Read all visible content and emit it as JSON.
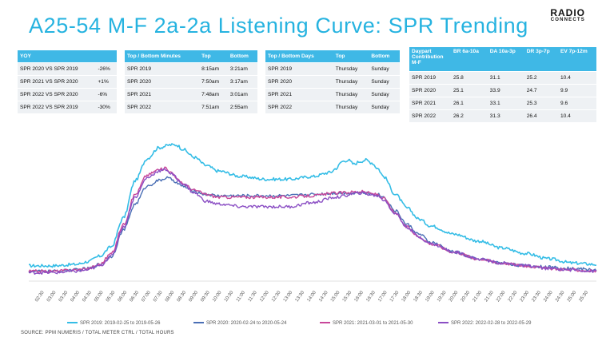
{
  "header": {
    "title": "A25-54 M-F 2a-2a Listening Curve: SPR Trending",
    "logo_line1": "RADIO",
    "logo_line2": "CONNECTS"
  },
  "tables": {
    "yoy": {
      "headers": [
        "YOY",
        ""
      ],
      "rows": [
        [
          "SPR 2020 VS SPR 2019",
          "-26%"
        ],
        [
          "SPR 2021 VS SPR 2020",
          "+1%"
        ],
        [
          "SPR 2022 VS SPR 2020",
          "-6%"
        ],
        [
          "SPR 2022 VS SPR 2019",
          "-30%"
        ]
      ]
    },
    "minutes": {
      "headers": [
        "Top / Bottom Minutes",
        "Top",
        "Bottom"
      ],
      "rows": [
        [
          "SPR 2019",
          "8:15am",
          "3:21am"
        ],
        [
          "SPR 2020",
          "7:50am",
          "3:17am"
        ],
        [
          "SPR 2021",
          "7:48am",
          "3:01am"
        ],
        [
          "SPR 2022",
          "7:51am",
          "2:55am"
        ]
      ]
    },
    "days": {
      "headers": [
        "Top / Bottom Days",
        "Top",
        "Bottom"
      ],
      "rows": [
        [
          "SPR 2019",
          "Thursday",
          "Sunday"
        ],
        [
          "SPR 2020",
          "Thursday",
          "Sunday"
        ],
        [
          "SPR 2021",
          "Thursday",
          "Sunday"
        ],
        [
          "SPR 2022",
          "Thursday",
          "Sunday"
        ]
      ]
    },
    "daypart": {
      "headers": [
        "Daypart Contribution M-F",
        "BR 6a-10a",
        "DA 10a-3p",
        "DR 3p-7p",
        "EV 7p-12m"
      ],
      "rows": [
        [
          "SPR 2019",
          "25.8",
          "31.1",
          "25.2",
          "10.4"
        ],
        [
          "SPR 2020",
          "25.1",
          "33.9",
          "24.7",
          "9.9"
        ],
        [
          "SPR 2021",
          "26.1",
          "33.1",
          "25.3",
          "9.6"
        ],
        [
          "SPR 2022",
          "26.2",
          "31.3",
          "26.4",
          "10.4"
        ]
      ]
    }
  },
  "source": "SOURCE: PPM NUMERIS / TOTAL METER CTRL / TOTAL HOURS",
  "colors": {
    "spr2019": "#35bde6",
    "spr2020": "#4a6fb5",
    "spr2021": "#c8479a",
    "spr2022": "#8b4fc4",
    "accent": "#26b3e0"
  },
  "chart_data": {
    "type": "line",
    "x_ticks": [
      "02:30",
      "03:00",
      "03:30",
      "04:00",
      "04:30",
      "05:00",
      "05:30",
      "06:00",
      "06:30",
      "07:00",
      "07:30",
      "08:00",
      "08:30",
      "09:00",
      "09:30",
      "10:00",
      "10:30",
      "11:00",
      "11:30",
      "12:00",
      "12:30",
      "13:00",
      "13:30",
      "14:00",
      "14:30",
      "15:00",
      "15:30",
      "16:00",
      "16:30",
      "17:00",
      "17:30",
      "18:00",
      "18:30",
      "19:00",
      "19:30",
      "20:00",
      "20:30",
      "21:00",
      "21:30",
      "22:00",
      "22:30",
      "23:00",
      "23:30",
      "24:00",
      "24:30",
      "25:00",
      "25:30"
    ],
    "x_start_minutes": 120,
    "x_end_minutes": 1560,
    "y_range": [
      0,
      100
    ],
    "series": [
      {
        "name": "SPR 2019: 2019-02-25 to 2019-05-26",
        "color": "#35bde6",
        "points": [
          [
            120,
            10
          ],
          [
            180,
            10
          ],
          [
            240,
            11
          ],
          [
            270,
            13
          ],
          [
            300,
            17
          ],
          [
            330,
            24
          ],
          [
            360,
            45
          ],
          [
            390,
            72
          ],
          [
            420,
            88
          ],
          [
            450,
            96
          ],
          [
            480,
            98
          ],
          [
            495,
            98
          ],
          [
            510,
            95
          ],
          [
            540,
            89
          ],
          [
            570,
            83
          ],
          [
            600,
            79
          ],
          [
            660,
            75
          ],
          [
            720,
            73
          ],
          [
            780,
            73
          ],
          [
            840,
            75
          ],
          [
            885,
            78
          ],
          [
            900,
            81
          ],
          [
            915,
            86
          ],
          [
            930,
            87
          ],
          [
            945,
            84
          ],
          [
            960,
            86
          ],
          [
            975,
            87
          ],
          [
            990,
            85
          ],
          [
            1005,
            81
          ],
          [
            1020,
            75
          ],
          [
            1050,
            62
          ],
          [
            1080,
            52
          ],
          [
            1110,
            44
          ],
          [
            1140,
            39
          ],
          [
            1200,
            33
          ],
          [
            1260,
            28
          ],
          [
            1320,
            23
          ],
          [
            1380,
            19
          ],
          [
            1440,
            15
          ],
          [
            1500,
            12
          ],
          [
            1560,
            11
          ]
        ]
      },
      {
        "name": "SPR 2020: 2020-02-24 to 2020-05-24",
        "color": "#4a6fb5",
        "points": [
          [
            120,
            6
          ],
          [
            180,
            6
          ],
          [
            240,
            7
          ],
          [
            270,
            8
          ],
          [
            300,
            11
          ],
          [
            330,
            17
          ],
          [
            360,
            36
          ],
          [
            390,
            55
          ],
          [
            420,
            68
          ],
          [
            450,
            72
          ],
          [
            470,
            74
          ],
          [
            480,
            73
          ],
          [
            510,
            68
          ],
          [
            540,
            64
          ],
          [
            570,
            62
          ],
          [
            600,
            61
          ],
          [
            660,
            61
          ],
          [
            720,
            61
          ],
          [
            780,
            61
          ],
          [
            840,
            62
          ],
          [
            900,
            63
          ],
          [
            960,
            63
          ],
          [
            1005,
            62
          ],
          [
            1020,
            60
          ],
          [
            1050,
            50
          ],
          [
            1080,
            40
          ],
          [
            1110,
            33
          ],
          [
            1140,
            27
          ],
          [
            1200,
            20
          ],
          [
            1260,
            15
          ],
          [
            1320,
            12
          ],
          [
            1380,
            10
          ],
          [
            1440,
            9
          ],
          [
            1500,
            8
          ],
          [
            1560,
            7
          ]
        ]
      },
      {
        "name": "SPR 2021: 2021-03-01 to 2021-05-30",
        "color": "#c8479a",
        "points": [
          [
            120,
            6
          ],
          [
            180,
            6
          ],
          [
            240,
            7
          ],
          [
            270,
            8
          ],
          [
            300,
            11
          ],
          [
            330,
            19
          ],
          [
            360,
            40
          ],
          [
            390,
            62
          ],
          [
            420,
            76
          ],
          [
            450,
            80
          ],
          [
            470,
            81
          ],
          [
            480,
            78
          ],
          [
            510,
            70
          ],
          [
            540,
            65
          ],
          [
            570,
            62
          ],
          [
            600,
            60
          ],
          [
            660,
            60
          ],
          [
            720,
            60
          ],
          [
            780,
            60
          ],
          [
            840,
            61
          ],
          [
            900,
            63
          ],
          [
            960,
            64
          ],
          [
            1005,
            62
          ],
          [
            1020,
            59
          ],
          [
            1050,
            48
          ],
          [
            1080,
            38
          ],
          [
            1110,
            31
          ],
          [
            1140,
            26
          ],
          [
            1200,
            20
          ],
          [
            1260,
            15
          ],
          [
            1320,
            12
          ],
          [
            1380,
            10
          ],
          [
            1440,
            8
          ],
          [
            1500,
            7
          ],
          [
            1560,
            6
          ]
        ]
      },
      {
        "name": "SPR 2022: 2022-02-28 to 2022-05-29",
        "color": "#8b4fc4",
        "points": [
          [
            120,
            5
          ],
          [
            180,
            5
          ],
          [
            240,
            6
          ],
          [
            270,
            7
          ],
          [
            300,
            10
          ],
          [
            330,
            17
          ],
          [
            360,
            38
          ],
          [
            390,
            60
          ],
          [
            420,
            74
          ],
          [
            450,
            79
          ],
          [
            470,
            80
          ],
          [
            480,
            77
          ],
          [
            510,
            70
          ],
          [
            540,
            63
          ],
          [
            570,
            57
          ],
          [
            600,
            55
          ],
          [
            660,
            53
          ],
          [
            720,
            53
          ],
          [
            780,
            53
          ],
          [
            840,
            56
          ],
          [
            900,
            60
          ],
          [
            960,
            63
          ],
          [
            1005,
            61
          ],
          [
            1020,
            58
          ],
          [
            1050,
            48
          ],
          [
            1080,
            38
          ],
          [
            1110,
            31
          ],
          [
            1140,
            26
          ],
          [
            1200,
            20
          ],
          [
            1260,
            15
          ],
          [
            1320,
            12
          ],
          [
            1380,
            10
          ],
          [
            1440,
            8
          ],
          [
            1500,
            7
          ],
          [
            1560,
            6
          ]
        ]
      }
    ]
  }
}
